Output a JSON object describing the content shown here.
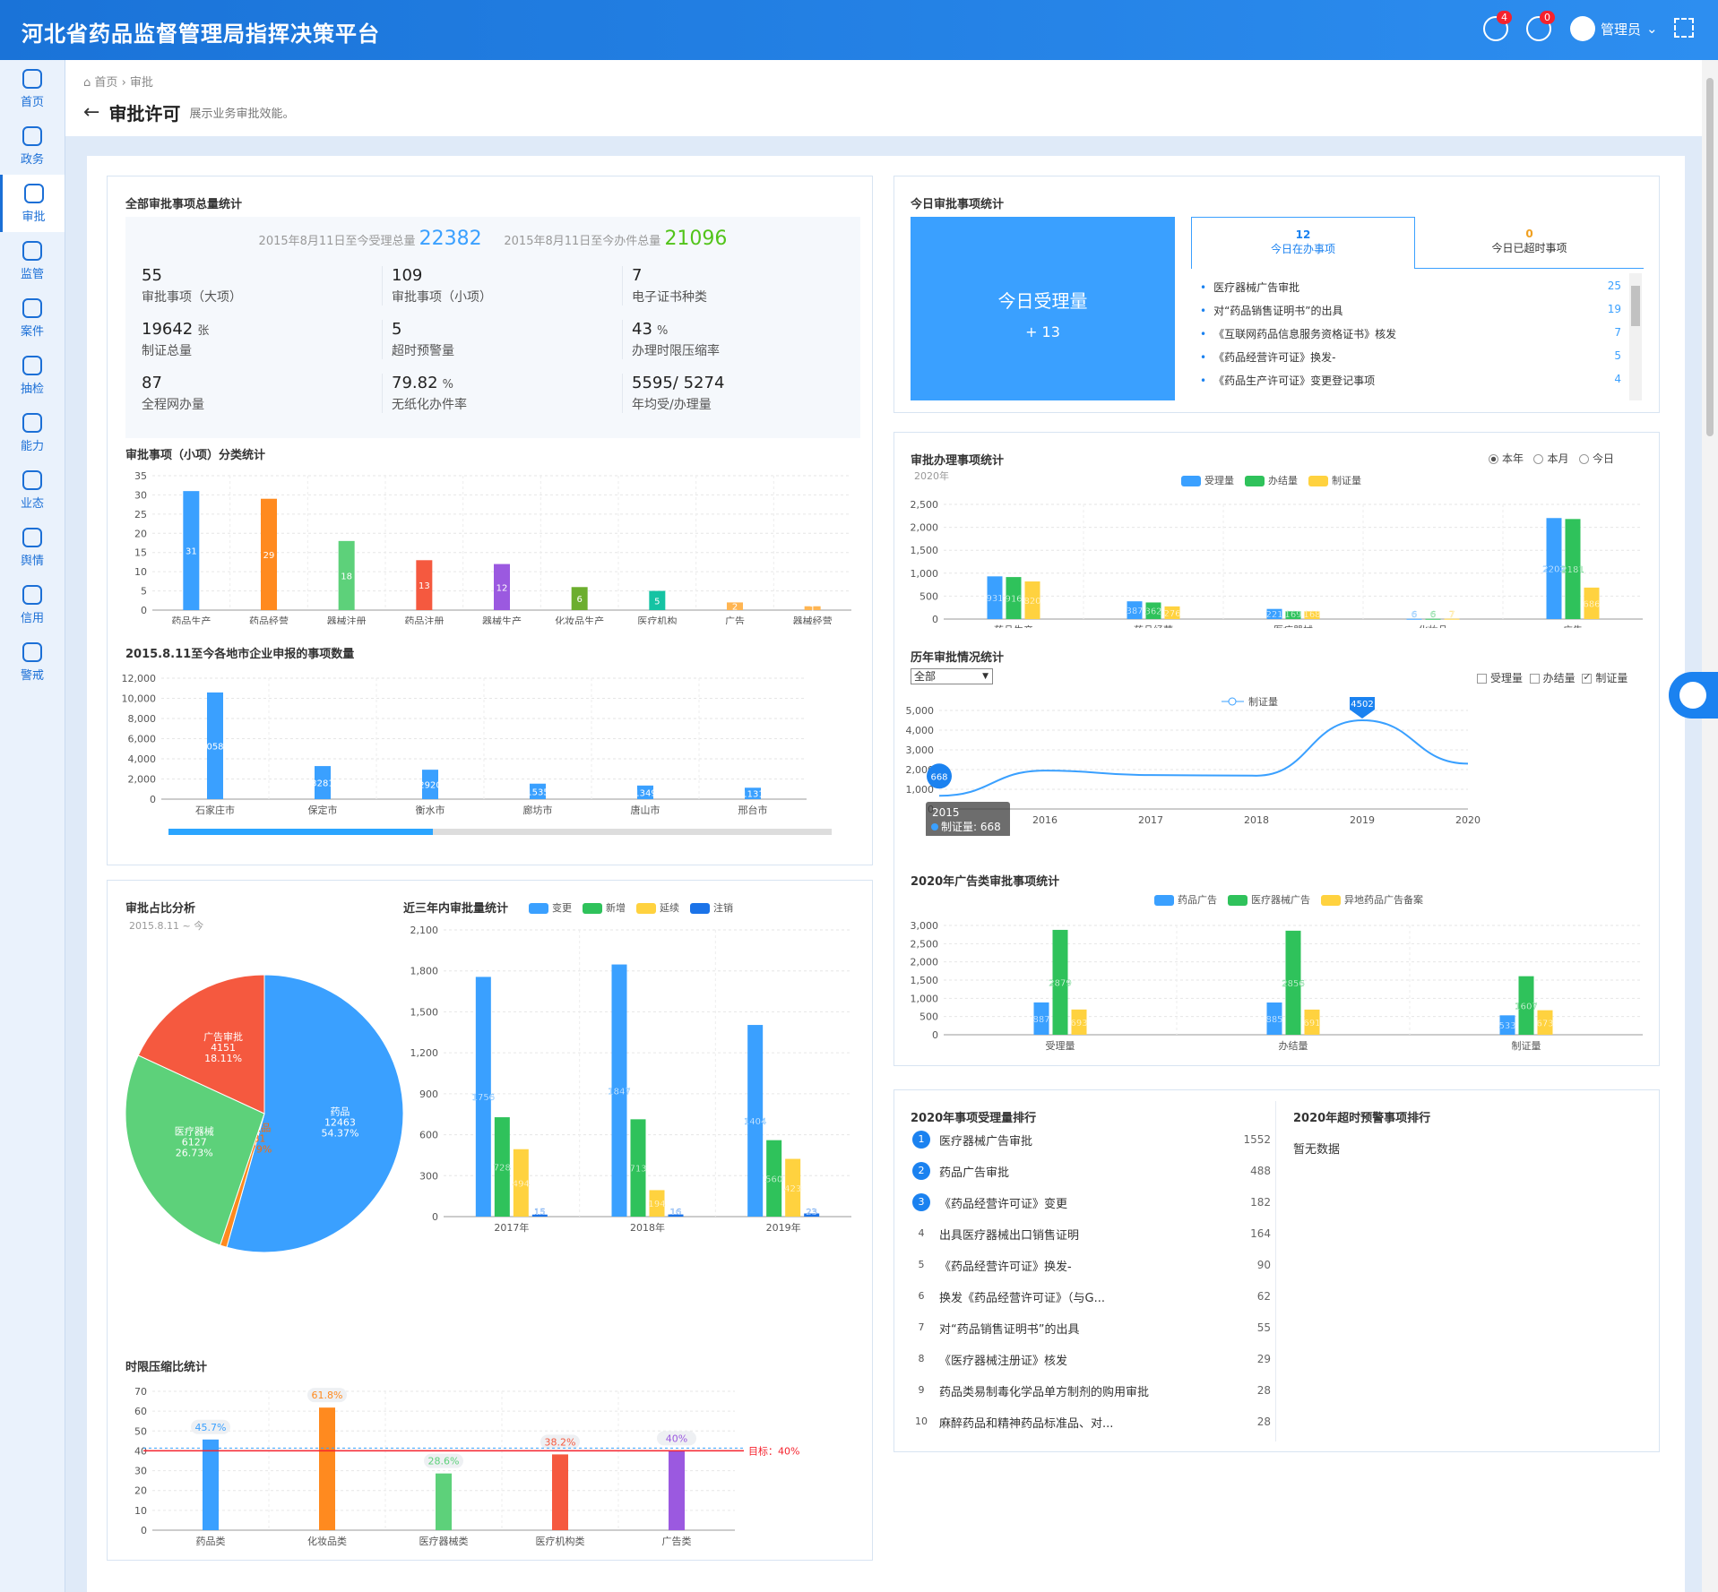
{
  "app": {
    "title": "河北省药品监督管理局指挥决策平台"
  },
  "header": {
    "alerts_badge": "4",
    "history_badge": "0",
    "user": "管理员"
  },
  "nav": [
    {
      "label": "首页",
      "icon": "home-icon"
    },
    {
      "label": "政务",
      "icon": "book-icon"
    },
    {
      "label": "审批",
      "icon": "approval-icon"
    },
    {
      "label": "监管",
      "icon": "supervise-icon"
    },
    {
      "label": "案件",
      "icon": "case-icon"
    },
    {
      "label": "抽检",
      "icon": "flask-icon"
    },
    {
      "label": "能力",
      "icon": "ability-icon"
    },
    {
      "label": "业态",
      "icon": "gauge-icon"
    },
    {
      "label": "舆情",
      "icon": "cloud-icon"
    },
    {
      "label": "信用",
      "icon": "credit-icon"
    },
    {
      "label": "警戒",
      "icon": "alert-icon"
    }
  ],
  "breadcrumb": {
    "home": "首页",
    "sep": "›",
    "current": "审批"
  },
  "page": {
    "title": "审批许可",
    "desc": "展示业务审批效能。"
  },
  "total_stats": {
    "title": "全部审批事项总量统计",
    "accept_label": "2015年8月11日至今受理总量",
    "accept_value": "22382",
    "done_label": "2015年8月11日至今办件总量",
    "done_value": "21096",
    "items": [
      {
        "value": "55",
        "unit": "",
        "label": "审批事项（大项）"
      },
      {
        "value": "109",
        "unit": "",
        "label": "审批事项（小项）"
      },
      {
        "value": "7",
        "unit": "",
        "label": "电子证书种类"
      },
      {
        "value": "19642",
        "unit": "张",
        "label": "制证总量"
      },
      {
        "value": "5",
        "unit": "",
        "label": "超时预警量"
      },
      {
        "value": "43",
        "unit": "%",
        "label": "办理时限压缩率"
      },
      {
        "value": "87",
        "unit": "",
        "label": "全程网办量"
      },
      {
        "value": "79.82",
        "unit": "%",
        "label": "无纸化办件率"
      },
      {
        "value": "5595/ 5274",
        "unit": "",
        "label": "年均受/办理量"
      }
    ]
  },
  "today": {
    "title": "今日审批事项统计",
    "big_label": "今日受理量",
    "big_value": "+ 13",
    "tab1_count": "12",
    "tab1_label": "今日在办事项",
    "tab2_count": "0",
    "tab2_label": "今日已超时事项",
    "items": [
      {
        "name": "医疗器械广告审批",
        "count": "25"
      },
      {
        "name": "对“药品销售证明书”的出具",
        "count": "19"
      },
      {
        "name": "《互联网药品信息服务资格证书》核发",
        "count": "7"
      },
      {
        "name": "《药品经营许可证》换发-",
        "count": "5"
      },
      {
        "name": "《药品生产许可证》变更登记事项",
        "count": "4"
      }
    ]
  },
  "rank": {
    "title": "2020年事项受理量排行",
    "timeout_title": "2020年超时预警事项排行",
    "timeout_empty": "暂无数据",
    "items": [
      {
        "n": "1",
        "name": "医疗器械广告审批",
        "v": "1552"
      },
      {
        "n": "2",
        "name": "药品广告审批",
        "v": "488"
      },
      {
        "n": "3",
        "name": "《药品经营许可证》变更",
        "v": "182"
      },
      {
        "n": "4",
        "name": "出具医疗器械出口销售证明",
        "v": "164"
      },
      {
        "n": "5",
        "name": "《药品经营许可证》换发-",
        "v": "90"
      },
      {
        "n": "6",
        "name": "换发《药品经营许可证》（与G...",
        "v": "62"
      },
      {
        "n": "7",
        "name": "对“药品销售证明书”的出具",
        "v": "55"
      },
      {
        "n": "8",
        "name": "《医疗器械注册证》核发",
        "v": "29"
      },
      {
        "n": "9",
        "name": "药品类易制毒化学品单方制剂的购用审批",
        "v": "28"
      },
      {
        "n": "10",
        "name": "麻醉药品和精神药品标准品、对...",
        "v": "28"
      }
    ]
  },
  "controls": {
    "radio_year": "本年",
    "radio_month": "本月",
    "radio_today": "今日",
    "select_value": "全部",
    "chk_accept": "受理量",
    "chk_done": "办结量",
    "chk_cert": "制证量"
  },
  "colors": {
    "blue": "#3aa0ff",
    "orange": "#ff8a1f",
    "green": "#2fc25b",
    "red": "#f5593f",
    "purple": "#9b59e0",
    "olive": "#6cae2e",
    "teal": "#15c3a3",
    "yellow": "#ffd23f",
    "darkblue": "#1b73e8"
  },
  "chart_data": [
    {
      "id": "category",
      "type": "bar",
      "title": "审批事项（小项）分类统计",
      "categories": [
        "药品生产",
        "药品经营",
        "器械注册",
        "药品注册",
        "器械生产",
        "化妆品生产",
        "医疗机构",
        "广告",
        "器械经营"
      ],
      "values": [
        31,
        29,
        18,
        13,
        12,
        6,
        5,
        2,
        1
      ],
      "colors": [
        "#3aa0ff",
        "#ff8a1f",
        "#5dd17a",
        "#f5593f",
        "#9b59e0",
        "#6cae2e",
        "#15c3a3",
        "#ffb552",
        "#ffb552"
      ],
      "yticks": [
        0,
        5,
        10,
        15,
        20,
        25,
        30,
        35
      ],
      "ylim": [
        0,
        35
      ]
    },
    {
      "id": "city",
      "type": "bar",
      "title": "2015.8.11至今各地市企业申报的事项数量",
      "categories": [
        "石家庄市",
        "保定市",
        "衡水市",
        "廊坊市",
        "唐山市",
        "邢台市"
      ],
      "values": [
        10584,
        3281,
        2920,
        1535,
        1349,
        1131
      ],
      "yticks": [
        0,
        2000,
        4000,
        6000,
        8000,
        10000,
        12000
      ],
      "ylim": [
        0,
        12000
      ]
    },
    {
      "id": "handle",
      "type": "bar",
      "title": "审批办理事项统计",
      "subtitle": "2020年",
      "categories": [
        "药品生产",
        "药品经营",
        "医疗器械",
        "化妆品",
        "广告"
      ],
      "series": [
        {
          "name": "受理量",
          "color": "#3aa0ff",
          "values": [
            931,
            387,
            221,
            6,
            2202
          ]
        },
        {
          "name": "办结量",
          "color": "#2fc25b",
          "values": [
            916,
            362,
            169,
            6,
            2181
          ]
        },
        {
          "name": "制证量",
          "color": "#ffd23f",
          "values": [
            820,
            276,
            168,
            7,
            686
          ]
        }
      ],
      "yticks": [
        0,
        500,
        1000,
        1500,
        2000,
        2500
      ],
      "ylim": [
        0,
        2500
      ]
    },
    {
      "id": "history",
      "type": "line",
      "title": "历年审批情况统计",
      "x": [
        "2015",
        "2016",
        "2017",
        "2018",
        "2019",
        "2020"
      ],
      "series": [
        {
          "name": "制证量",
          "color": "#3aa0ff",
          "values": [
            668,
            1950,
            1720,
            1690,
            4502,
            2300
          ]
        }
      ],
      "max_label": "4502",
      "min_label": "668",
      "tooltip_year": "2015",
      "tooltip_text": "制证量: 668",
      "yticks": [
        0,
        1000,
        2000,
        3000,
        4000,
        5000
      ],
      "ylim": [
        0,
        5000
      ]
    },
    {
      "id": "ad",
      "type": "bar",
      "title": "2020年广告类审批事项统计",
      "categories": [
        "受理量",
        "办结量",
        "制证量"
      ],
      "series": [
        {
          "name": "药品广告",
          "color": "#3aa0ff",
          "values": [
            887,
            885,
            533
          ]
        },
        {
          "name": "医疗器械广告",
          "color": "#2fc25b",
          "values": [
            2879,
            2856,
            1607
          ]
        },
        {
          "name": "异地药品广告备案",
          "color": "#ffd23f",
          "values": [
            693,
            691,
            673
          ]
        }
      ],
      "yticks": [
        0,
        500,
        1000,
        1500,
        2000,
        2500,
        3000
      ],
      "ylim": [
        0,
        3000
      ]
    },
    {
      "id": "pie",
      "type": "pie",
      "title": "审批占比分析",
      "subtitle": "2015.8.11 ~ 今",
      "slices": [
        {
          "name": "药品",
          "value": 12463,
          "pct": "54.37%",
          "color": "#3aa0ff"
        },
        {
          "name": "化妆品",
          "value": 181,
          "pct": "0.79%",
          "color": "#ff8a1f"
        },
        {
          "name": "医疗器械",
          "value": 6127,
          "pct": "26.73%",
          "color": "#5dd17a"
        },
        {
          "name": "广告审批",
          "value": 4151,
          "pct": "18.11%",
          "color": "#f5593f"
        }
      ]
    },
    {
      "id": "three",
      "type": "bar",
      "title": "近三年内审批量统计",
      "categories": [
        "2017年",
        "2018年",
        "2019年"
      ],
      "series": [
        {
          "name": "变更",
          "color": "#3aa0ff",
          "values": [
            1756,
            1847,
            1404
          ]
        },
        {
          "name": "新增",
          "color": "#2fc25b",
          "values": [
            728,
            713,
            560
          ]
        },
        {
          "name": "延续",
          "color": "#ffd23f",
          "values": [
            494,
            194,
            423
          ]
        },
        {
          "name": "注销",
          "color": "#1b73e8",
          "values": [
            15,
            16,
            23
          ]
        }
      ],
      "yticks": [
        0,
        300,
        600,
        900,
        1200,
        1500,
        1800,
        2100
      ],
      "ylim": [
        0,
        2100
      ]
    },
    {
      "id": "compress",
      "type": "bar",
      "title": "时限压缩比统计",
      "categories": [
        "药品类",
        "化妆品类",
        "医疗器械类",
        "医疗机构类",
        "广告类"
      ],
      "values": [
        45.7,
        61.8,
        28.6,
        38.2,
        40
      ],
      "labels": [
        "45.7%",
        "61.8%",
        "28.6%",
        "38.2%",
        "40%"
      ],
      "colors": [
        "#3aa0ff",
        "#ff8a1f",
        "#5dd17a",
        "#f5593f",
        "#9b59e0"
      ],
      "target": 40,
      "target_label": "目标：40%",
      "yticks": [
        0,
        10,
        20,
        30,
        40,
        50,
        60,
        70
      ],
      "ylim": [
        0,
        70
      ]
    }
  ]
}
